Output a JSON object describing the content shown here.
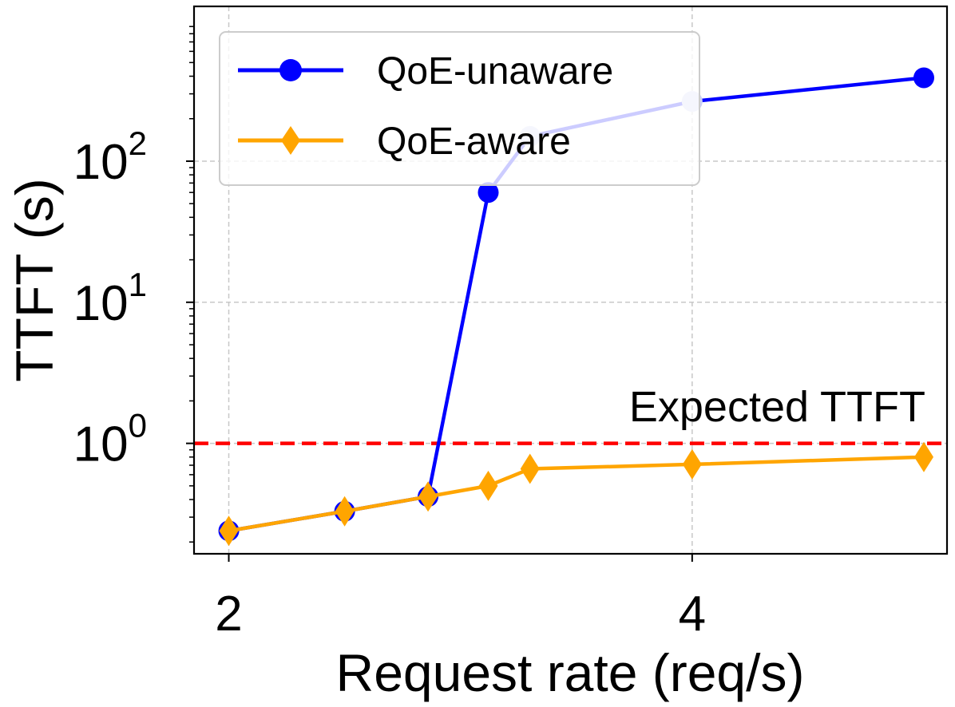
{
  "chart_data": {
    "type": "line",
    "xlabel": "Request rate (req/s)",
    "ylabel": "TTFT (s)",
    "xscale": "linear",
    "yscale": "log",
    "xlim": [
      1.85,
      5.1
    ],
    "ylim": [
      0.165,
      1250
    ],
    "x_ticks": [
      {
        "value": 2,
        "label": "2"
      },
      {
        "value": 4,
        "label": "4"
      }
    ],
    "y_ticks": [
      {
        "value": 1,
        "base": "10",
        "exp": "0"
      },
      {
        "value": 10,
        "base": "10",
        "exp": "1"
      },
      {
        "value": 100,
        "base": "10",
        "exp": "2"
      }
    ],
    "grid": true,
    "legend_position": "upper left",
    "series": [
      {
        "name": "QoE-unaware",
        "color": "#0000ff",
        "marker": "circle",
        "x": [
          2.0,
          2.5,
          2.86,
          3.12,
          3.3,
          4.0,
          5.0
        ],
        "y": [
          0.24,
          0.33,
          0.42,
          60,
          150,
          265,
          390
        ]
      },
      {
        "name": "QoE-aware",
        "color": "#ffa500",
        "marker": "diamond",
        "x": [
          2.0,
          2.5,
          2.86,
          3.12,
          3.3,
          4.0,
          5.0
        ],
        "y": [
          0.24,
          0.33,
          0.42,
          0.5,
          0.66,
          0.71,
          0.8
        ]
      }
    ],
    "reference_line": {
      "y": 1,
      "color": "#ff0000",
      "style": "dashed",
      "label": "Expected TTFT"
    }
  }
}
